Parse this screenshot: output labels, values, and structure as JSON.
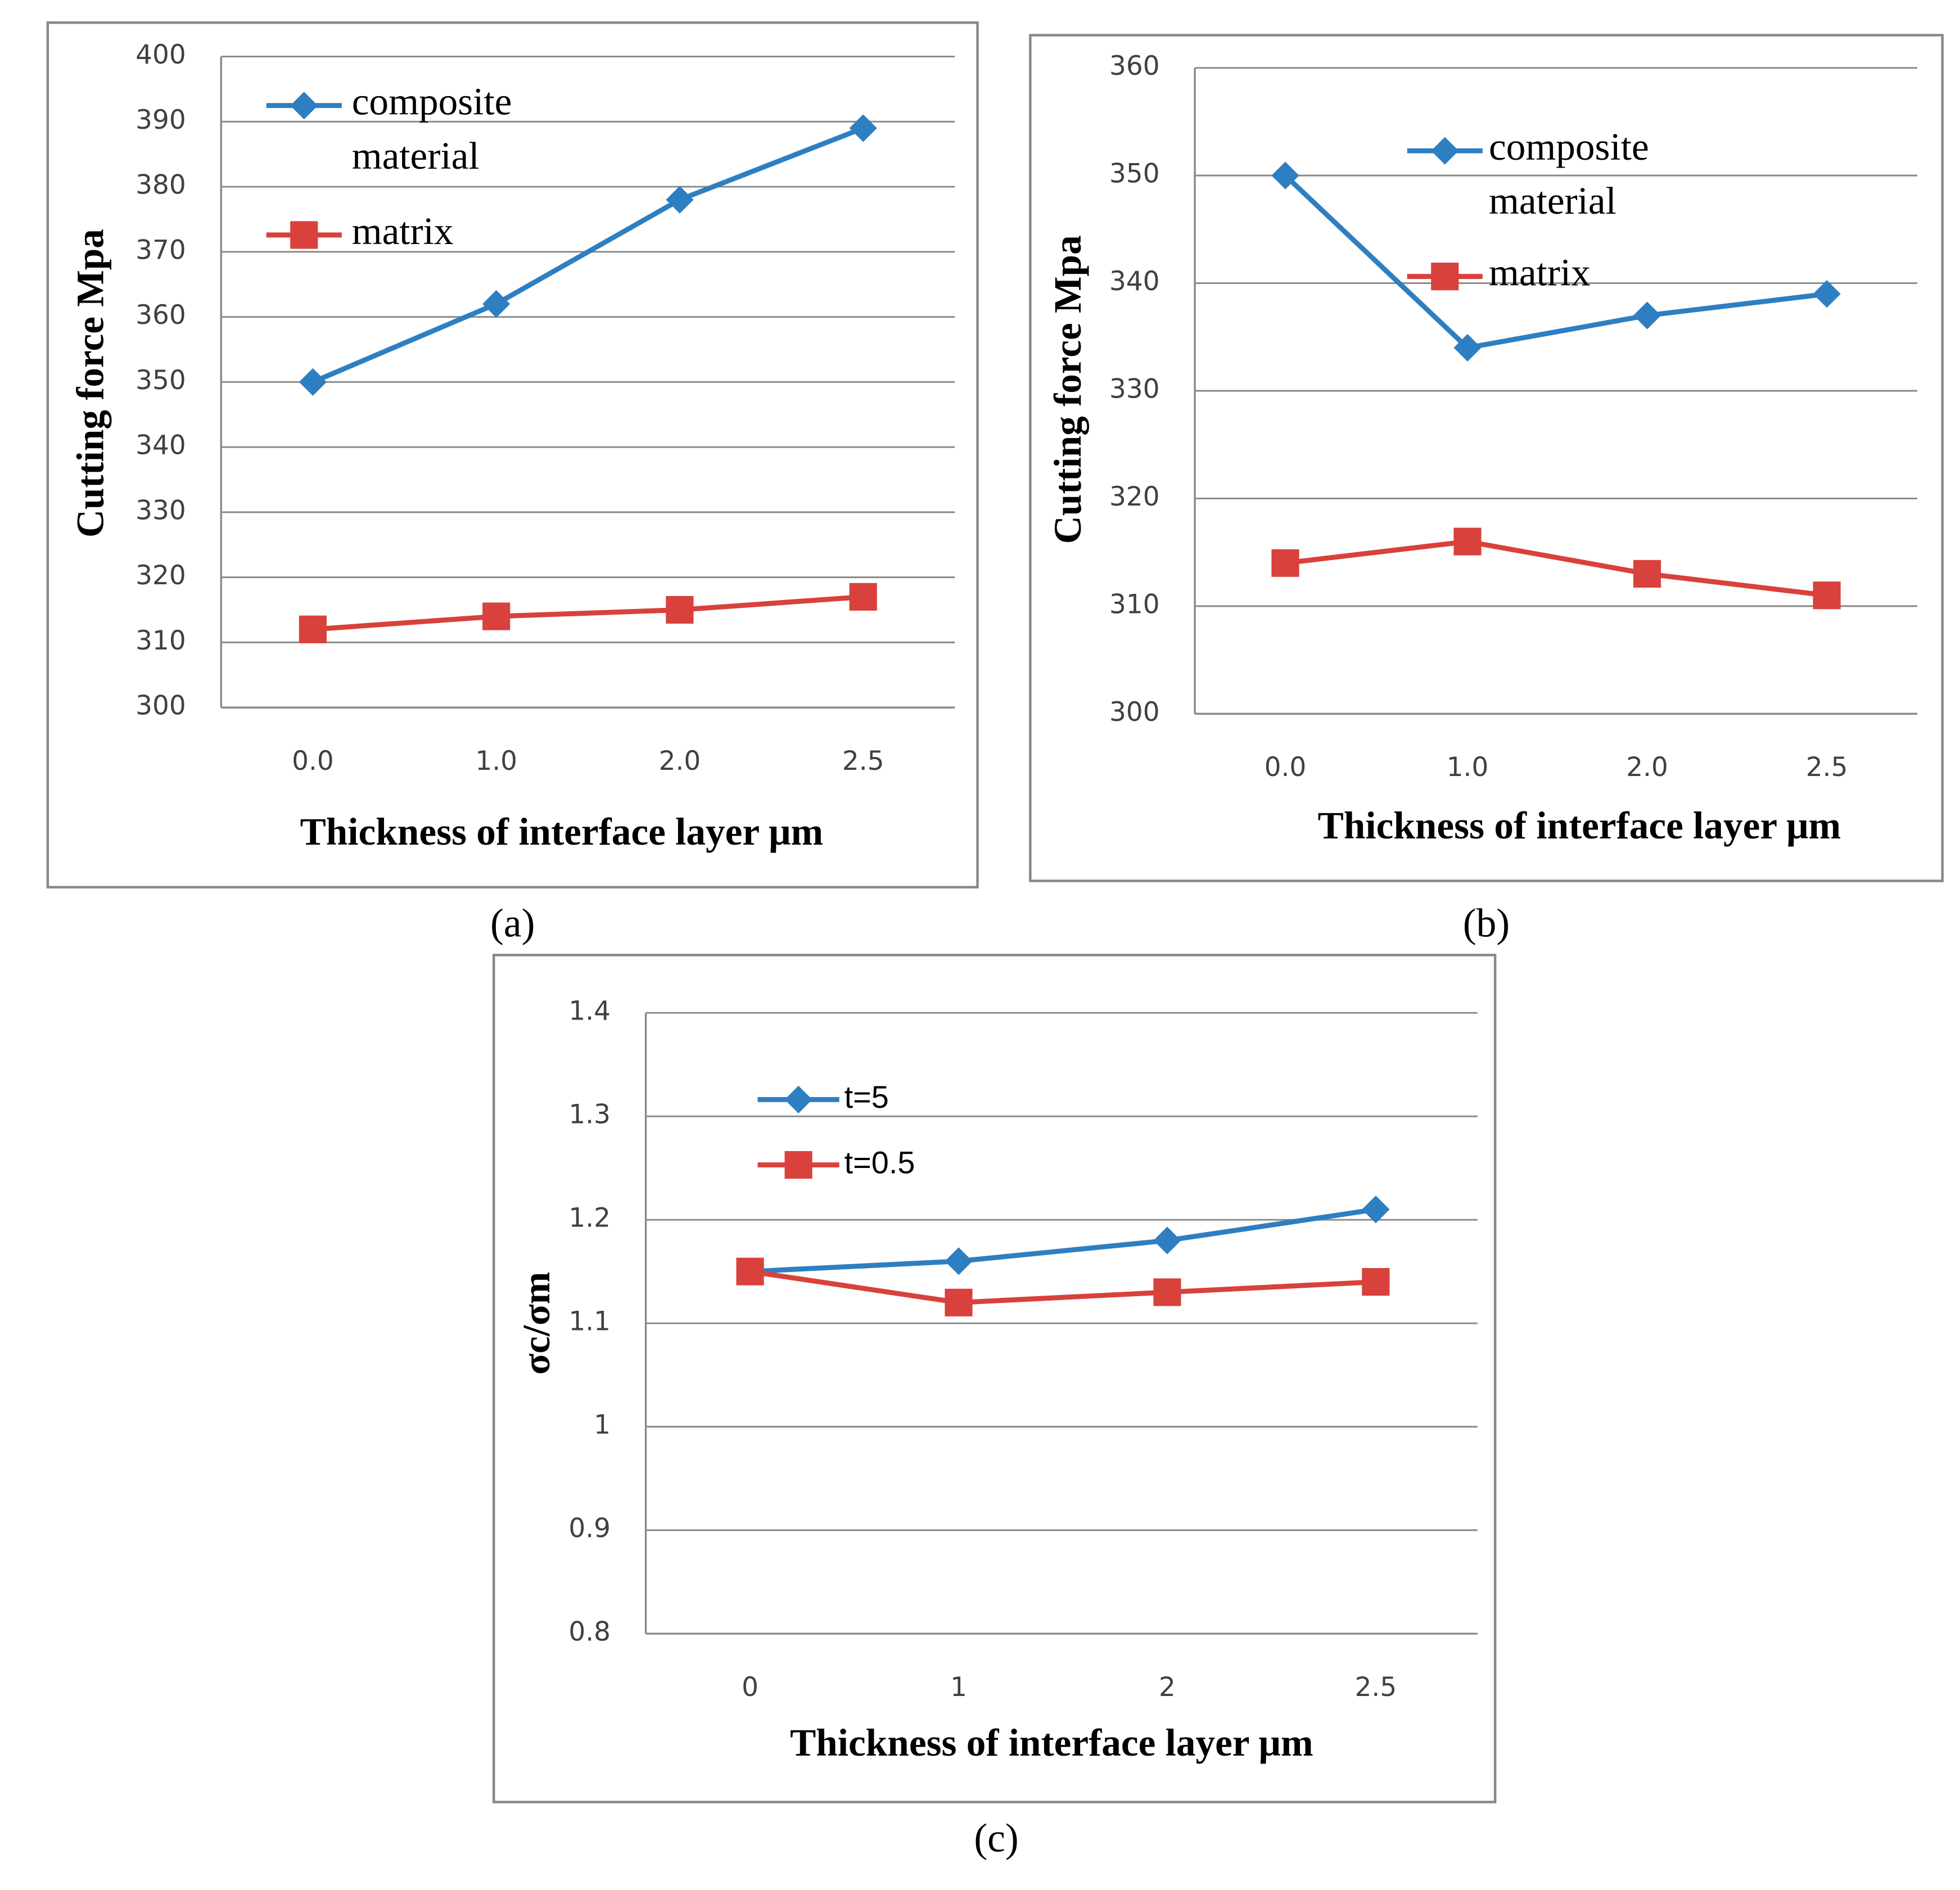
{
  "chart_data": [
    {
      "type": "line",
      "caption": "(a)",
      "y_label": "Cutting force Mpa",
      "x_label": "Thickness of interface layer μm",
      "categories": [
        "0.0",
        "1.0",
        "2.0",
        "2.5"
      ],
      "series": [
        {
          "name": "composite material",
          "color": "#2e7fc1",
          "marker": "diamond",
          "values": [
            350,
            362,
            378,
            389
          ]
        },
        {
          "name": "matrix",
          "color": "#d9413c",
          "marker": "square",
          "values": [
            312,
            314,
            315,
            317
          ]
        }
      ],
      "ylim": [
        300,
        400
      ],
      "yticks": [
        300,
        310,
        320,
        330,
        340,
        350,
        360,
        370,
        380,
        390,
        400
      ],
      "grid": true
    },
    {
      "type": "line",
      "caption": "(b)",
      "y_label": "Cutting force Mpa",
      "x_label": "Thickness of interface layer μm",
      "categories": [
        "0.0",
        "1.0",
        "2.0",
        "2.5"
      ],
      "series": [
        {
          "name": "composite material",
          "color": "#2e7fc1",
          "marker": "diamond",
          "values": [
            350,
            334,
            337,
            339
          ]
        },
        {
          "name": "matrix",
          "color": "#d9413c",
          "marker": "square",
          "values": [
            314,
            316,
            313,
            311
          ]
        }
      ],
      "ylim": [
        300,
        360
      ],
      "yticks": [
        300,
        310,
        320,
        330,
        340,
        350,
        360
      ],
      "grid": true
    },
    {
      "type": "line",
      "caption": "(c)",
      "y_label": "σc/σm",
      "x_label": "Thickness of interface layer μm",
      "categories": [
        "0",
        "1",
        "2",
        "2.5"
      ],
      "series": [
        {
          "name": "t=5",
          "color": "#2e7fc1",
          "marker": "diamond",
          "values": [
            1.15,
            1.16,
            1.18,
            1.21
          ]
        },
        {
          "name": "t=0.5",
          "color": "#d9413c",
          "marker": "square",
          "values": [
            1.15,
            1.12,
            1.13,
            1.14
          ]
        }
      ],
      "ylim": [
        0.8,
        1.4
      ],
      "yticks": [
        0.8,
        0.9,
        1,
        1.1,
        1.2,
        1.3,
        1.4
      ],
      "grid": true
    }
  ]
}
